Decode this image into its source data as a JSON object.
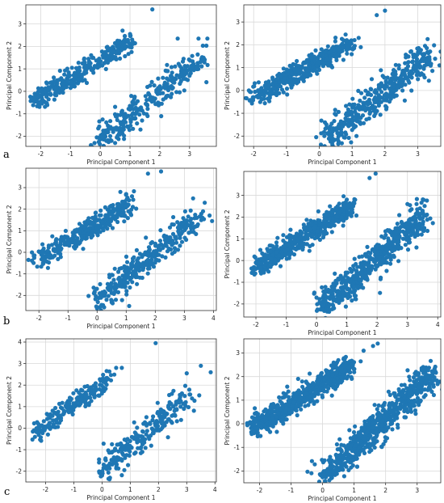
{
  "row_labels": [
    "a",
    "b",
    "c"
  ],
  "chart_data": [
    {
      "id": "a-left",
      "type": "scatter",
      "title": "",
      "xlabel": "Principal Component 1",
      "ylabel": "Principal Component 2",
      "xlim": [
        -2.5,
        3.9
      ],
      "ylim": [
        -2.45,
        3.85
      ],
      "xticks": [
        -2,
        -1,
        0,
        1,
        2,
        3
      ],
      "yticks": [
        -2,
        -1,
        0,
        1,
        2,
        3
      ],
      "grid": true,
      "color": "#1f77b4",
      "clusters": [
        {
          "x": [
            -2.2,
            1.0
          ],
          "y": [
            -0.45,
            2.2
          ],
          "n": 330,
          "spread": [
            0.22,
            0.16
          ]
        },
        {
          "x": [
            0.0,
            3.4
          ],
          "y": [
            -2.2,
            1.5
          ],
          "n": 300,
          "spread": [
            0.3,
            0.22
          ]
        }
      ],
      "extra_points": [
        [
          1.75,
          3.65
        ],
        [
          0.75,
          2.7
        ],
        [
          1.0,
          2.55
        ],
        [
          2.6,
          2.35
        ],
        [
          3.3,
          2.35
        ],
        [
          3.6,
          2.35
        ],
        [
          0.1,
          -1.75
        ],
        [
          0.5,
          -2.3
        ]
      ]
    },
    {
      "id": "a-right",
      "type": "scatter",
      "title": "",
      "xlabel": "Principal Component 1",
      "ylabel": "Principal Component 2",
      "xlim": [
        -2.3,
        3.7
      ],
      "ylim": [
        -2.45,
        3.75
      ],
      "xticks": [
        -2,
        -1,
        0,
        1,
        2,
        3
      ],
      "yticks": [
        -2,
        -1,
        0,
        1,
        2,
        3
      ],
      "grid": true,
      "color": "#1f77b4",
      "clusters": [
        {
          "x": [
            -2.0,
            1.0
          ],
          "y": [
            -0.3,
            2.1
          ],
          "n": 420,
          "spread": [
            0.22,
            0.16
          ]
        },
        {
          "x": [
            0.2,
            3.4
          ],
          "y": [
            -2.2,
            1.6
          ],
          "n": 420,
          "spread": [
            0.32,
            0.24
          ]
        }
      ],
      "extra_points": [
        [
          2.0,
          3.5
        ],
        [
          1.75,
          3.3
        ],
        [
          0.8,
          2.45
        ],
        [
          1.2,
          2.3
        ],
        [
          3.3,
          2.25
        ],
        [
          0.4,
          -2.1
        ]
      ]
    },
    {
      "id": "b-left",
      "type": "scatter",
      "title": "",
      "xlabel": "Principal Component 1",
      "ylabel": "Principal Component 2",
      "xlim": [
        -2.45,
        4.1
      ],
      "ylim": [
        -2.7,
        3.9
      ],
      "xticks": [
        -2,
        -1,
        0,
        1,
        2,
        3,
        4
      ],
      "yticks": [
        -2,
        -1,
        0,
        1,
        2,
        3
      ],
      "grid": true,
      "color": "#1f77b4",
      "clusters": [
        {
          "x": [
            -2.1,
            1.1
          ],
          "y": [
            -0.4,
            2.2
          ],
          "n": 330,
          "spread": [
            0.22,
            0.16
          ]
        },
        {
          "x": [
            0.0,
            3.5
          ],
          "y": [
            -2.3,
            1.7
          ],
          "n": 320,
          "spread": [
            0.3,
            0.22
          ]
        }
      ],
      "extra_points": [
        [
          1.75,
          3.65
        ],
        [
          2.2,
          3.75
        ],
        [
          0.8,
          2.8
        ],
        [
          1.0,
          2.7
        ],
        [
          1.2,
          2.6
        ],
        [
          3.3,
          2.5
        ],
        [
          3.7,
          2.3
        ],
        [
          0.0,
          -2.6
        ]
      ]
    },
    {
      "id": "b-right",
      "type": "scatter",
      "title": "",
      "xlabel": "Principal Component 1",
      "ylabel": "Principal Component 2",
      "xlim": [
        -2.4,
        4.1
      ],
      "ylim": [
        -2.6,
        4.1
      ],
      "xticks": [
        -2,
        -1,
        0,
        1,
        2,
        3,
        4
      ],
      "yticks": [
        -2,
        -1,
        0,
        1,
        2,
        3
      ],
      "grid": true,
      "color": "#1f77b4",
      "clusters": [
        {
          "x": [
            -2.0,
            1.2
          ],
          "y": [
            -0.3,
            2.5
          ],
          "n": 520,
          "spread": [
            0.22,
            0.16
          ]
        },
        {
          "x": [
            0.2,
            3.6
          ],
          "y": [
            -2.2,
            2.2
          ],
          "n": 560,
          "spread": [
            0.32,
            0.24
          ]
        }
      ],
      "extra_points": [
        [
          1.95,
          4.0
        ],
        [
          1.75,
          3.8
        ],
        [
          3.0,
          2.6
        ],
        [
          3.3,
          2.6
        ],
        [
          1.0,
          2.8
        ]
      ]
    },
    {
      "id": "c-left",
      "type": "scatter",
      "title": "",
      "xlabel": "Principal Component 1",
      "ylabel": "Principal Component 2",
      "xlim": [
        -2.7,
        4.05
      ],
      "ylim": [
        -2.5,
        4.15
      ],
      "xticks": [
        -2,
        -1,
        0,
        1,
        2,
        3,
        4
      ],
      "yticks": [
        -2,
        -1,
        0,
        1,
        2,
        3,
        4
      ],
      "grid": true,
      "color": "#1f77b4",
      "clusters": [
        {
          "x": [
            -2.4,
            0.3
          ],
          "y": [
            -0.3,
            2.3
          ],
          "n": 200,
          "spread": [
            0.22,
            0.16
          ]
        },
        {
          "x": [
            0.0,
            3.0
          ],
          "y": [
            -2.0,
            1.5
          ],
          "n": 230,
          "spread": [
            0.3,
            0.22
          ]
        }
      ],
      "extra_points": [
        [
          1.9,
          3.95
        ],
        [
          0.5,
          2.8
        ],
        [
          0.7,
          2.8
        ],
        [
          3.5,
          2.9
        ],
        [
          3.85,
          2.6
        ],
        [
          3.0,
          2.55
        ],
        [
          0.0,
          -2.2
        ]
      ]
    },
    {
      "id": "c-right",
      "type": "scatter",
      "title": "",
      "xlabel": "Principal Component 1",
      "ylabel": "Principal Component 2",
      "xlim": [
        -2.5,
        3.75
      ],
      "ylim": [
        -2.5,
        3.6
      ],
      "xticks": [
        -2,
        -1,
        0,
        1,
        2,
        3
      ],
      "yticks": [
        -2,
        -1,
        0,
        1,
        2,
        3
      ],
      "grid": true,
      "color": "#1f77b4",
      "clusters": [
        {
          "x": [
            -2.2,
            0.9
          ],
          "y": [
            -0.2,
            2.5
          ],
          "n": 620,
          "spread": [
            0.22,
            0.16
          ]
        },
        {
          "x": [
            0.0,
            3.5
          ],
          "y": [
            -2.3,
            2.1
          ],
          "n": 680,
          "spread": [
            0.3,
            0.22
          ]
        }
      ],
      "extra_points": [
        [
          1.6,
          3.3
        ],
        [
          1.75,
          3.4
        ],
        [
          1.3,
          3.1
        ],
        [
          0.5,
          2.7
        ],
        [
          3.5,
          2.2
        ]
      ]
    }
  ]
}
